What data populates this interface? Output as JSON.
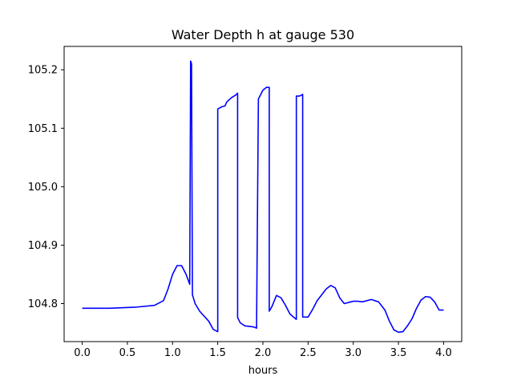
{
  "chart_data": {
    "type": "line",
    "title": "Water Depth h at gauge 530",
    "xlabel": "hours",
    "ylabel": "",
    "xlim": [
      -0.2,
      4.2
    ],
    "ylim": [
      104.735,
      105.24
    ],
    "grid": false,
    "legend": "none",
    "x_ticks": [
      0.0,
      0.5,
      1.0,
      1.5,
      2.0,
      2.5,
      3.0,
      3.5,
      4.0
    ],
    "x_tick_labels": [
      "0.0",
      "0.5",
      "1.0",
      "1.5",
      "2.0",
      "2.5",
      "3.0",
      "3.5",
      "4.0"
    ],
    "y_ticks": [
      104.8,
      104.9,
      105.0,
      105.1,
      105.2
    ],
    "y_tick_labels": [
      "104.8",
      "104.9",
      "105.0",
      "105.1",
      "105.2"
    ],
    "series": [
      {
        "color": "#0000ff",
        "x": [
          0.0,
          0.3,
          0.6,
          0.8,
          0.9,
          0.95,
          1.0,
          1.05,
          1.1,
          1.15,
          1.19,
          1.2,
          1.21,
          1.22,
          1.25,
          1.3,
          1.4,
          1.45,
          1.5,
          1.5,
          1.55,
          1.58,
          1.6,
          1.65,
          1.7,
          1.72,
          1.72,
          1.75,
          1.8,
          1.9,
          1.93,
          1.93,
          1.95,
          2.0,
          2.04,
          2.07,
          2.07,
          2.1,
          2.15,
          2.2,
          2.25,
          2.3,
          2.37,
          2.37,
          2.4,
          2.42,
          2.44,
          2.44,
          2.5,
          2.55,
          2.6,
          2.7,
          2.75,
          2.8,
          2.85,
          2.9,
          3.0,
          3.05,
          3.1,
          3.2,
          3.28,
          3.35,
          3.4,
          3.45,
          3.5,
          3.55,
          3.6,
          3.65,
          3.7,
          3.75,
          3.8,
          3.85,
          3.9,
          3.95,
          4.0
        ],
        "y": [
          104.792,
          104.792,
          104.794,
          104.797,
          104.805,
          104.825,
          104.85,
          104.865,
          104.865,
          104.85,
          104.833,
          105.215,
          105.21,
          104.815,
          104.8,
          104.787,
          104.77,
          104.756,
          104.752,
          105.133,
          105.137,
          105.138,
          105.145,
          105.152,
          105.157,
          105.16,
          104.776,
          104.767,
          104.762,
          104.76,
          104.758,
          104.768,
          105.15,
          105.165,
          105.17,
          105.17,
          104.787,
          104.795,
          104.814,
          104.81,
          104.797,
          104.782,
          104.773,
          105.155,
          105.155,
          105.156,
          105.158,
          104.777,
          104.777,
          104.79,
          104.805,
          104.825,
          104.831,
          104.827,
          104.81,
          104.8,
          104.804,
          104.804,
          104.803,
          104.807,
          104.803,
          104.789,
          104.77,
          104.755,
          104.751,
          104.752,
          104.762,
          104.774,
          104.792,
          104.806,
          104.812,
          104.811,
          104.803,
          104.789,
          104.789
        ]
      }
    ]
  }
}
